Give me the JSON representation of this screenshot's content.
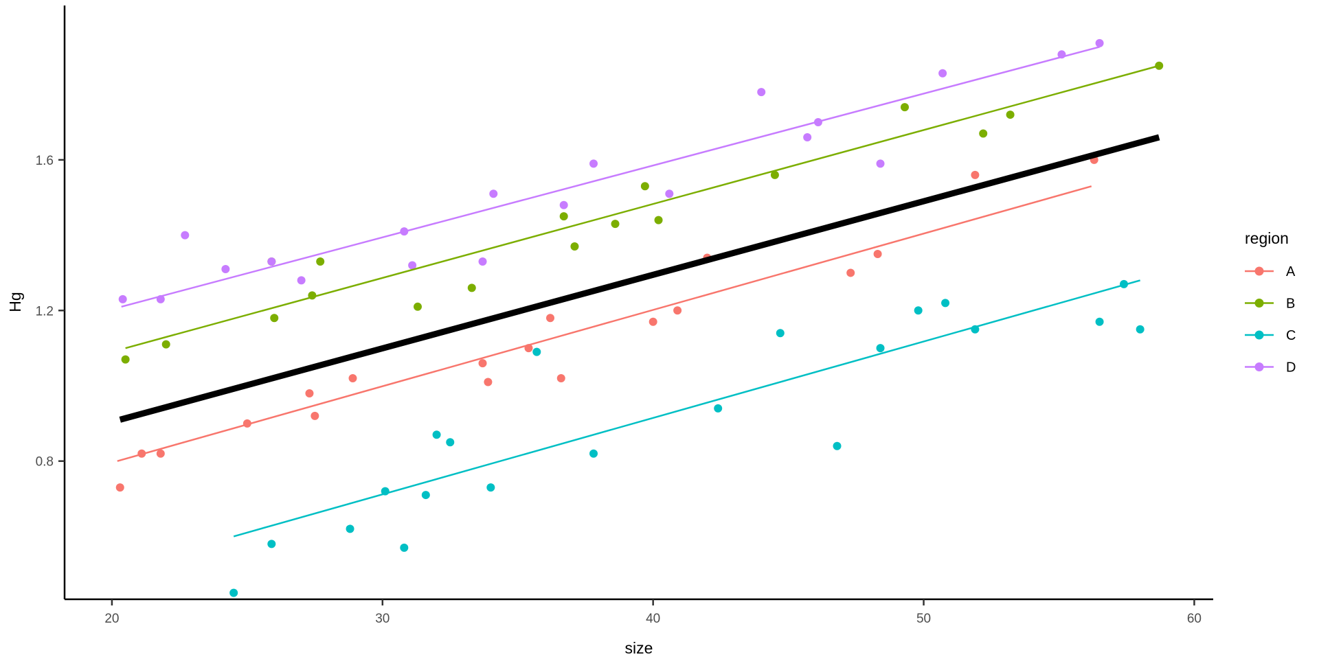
{
  "chart_data": {
    "type": "scatter",
    "title": "",
    "xlabel": "size",
    "ylabel": "Hg",
    "x_ticks": [
      "20",
      "30",
      "40",
      "50",
      "60"
    ],
    "y_ticks": [
      "0.8",
      "1.2",
      "1.6"
    ],
    "x_range": [
      18.25,
      60.7
    ],
    "y_range": [
      0.433,
      2.01
    ],
    "grid": "off",
    "legend": {
      "title": "region",
      "position": "right"
    },
    "series": [
      {
        "name": "A",
        "color": "#F8766D",
        "points": [
          [
            20.3,
            0.73
          ],
          [
            21.1,
            0.82
          ],
          [
            21.8,
            0.82
          ],
          [
            25.0,
            0.9
          ],
          [
            27.3,
            0.98
          ],
          [
            27.5,
            0.92
          ],
          [
            28.9,
            1.02
          ],
          [
            33.7,
            1.06
          ],
          [
            33.9,
            1.01
          ],
          [
            35.4,
            1.1
          ],
          [
            36.2,
            1.18
          ],
          [
            36.6,
            1.02
          ],
          [
            40.0,
            1.17
          ],
          [
            40.9,
            1.2
          ],
          [
            42.0,
            1.34
          ],
          [
            47.3,
            1.3
          ],
          [
            48.3,
            1.35
          ],
          [
            51.9,
            1.56
          ],
          [
            56.3,
            1.6
          ]
        ],
        "fit_line": {
          "x1": 20.2,
          "y1": 0.8,
          "x2": 56.2,
          "y2": 1.53
        }
      },
      {
        "name": "B",
        "color": "#7CAE00",
        "points": [
          [
            20.5,
            1.07
          ],
          [
            22.0,
            1.11
          ],
          [
            25.9,
            1.33
          ],
          [
            26.0,
            1.18
          ],
          [
            27.4,
            1.24
          ],
          [
            27.7,
            1.33
          ],
          [
            31.3,
            1.21
          ],
          [
            33.3,
            1.26
          ],
          [
            36.7,
            1.45
          ],
          [
            37.1,
            1.37
          ],
          [
            38.6,
            1.43
          ],
          [
            39.7,
            1.53
          ],
          [
            40.2,
            1.44
          ],
          [
            44.5,
            1.56
          ],
          [
            49.3,
            1.74
          ],
          [
            52.2,
            1.67
          ],
          [
            53.2,
            1.72
          ],
          [
            58.7,
            1.85
          ]
        ],
        "fit_line": {
          "x1": 20.5,
          "y1": 1.1,
          "x2": 58.7,
          "y2": 1.85
        }
      },
      {
        "name": "C",
        "color": "#00BFC4",
        "points": [
          [
            24.5,
            0.45
          ],
          [
            25.9,
            0.58
          ],
          [
            28.8,
            0.62
          ],
          [
            30.1,
            0.72
          ],
          [
            30.8,
            0.57
          ],
          [
            31.6,
            0.71
          ],
          [
            32.0,
            0.87
          ],
          [
            32.5,
            0.85
          ],
          [
            34.0,
            0.73
          ],
          [
            35.7,
            1.09
          ],
          [
            37.8,
            0.82
          ],
          [
            42.4,
            0.94
          ],
          [
            44.7,
            1.14
          ],
          [
            46.8,
            0.84
          ],
          [
            48.4,
            1.1
          ],
          [
            49.8,
            1.2
          ],
          [
            50.8,
            1.22
          ],
          [
            51.9,
            1.15
          ],
          [
            56.5,
            1.17
          ],
          [
            57.4,
            1.27
          ],
          [
            58.0,
            1.15
          ]
        ],
        "fit_line": {
          "x1": 24.5,
          "y1": 0.6,
          "x2": 58.0,
          "y2": 1.28
        }
      },
      {
        "name": "D",
        "color": "#C77CFF",
        "points": [
          [
            20.4,
            1.23
          ],
          [
            21.8,
            1.23
          ],
          [
            22.7,
            1.4
          ],
          [
            24.2,
            1.31
          ],
          [
            25.9,
            1.33
          ],
          [
            27.0,
            1.28
          ],
          [
            30.8,
            1.41
          ],
          [
            31.1,
            1.32
          ],
          [
            33.7,
            1.33
          ],
          [
            34.1,
            1.51
          ],
          [
            36.7,
            1.48
          ],
          [
            37.8,
            1.59
          ],
          [
            40.6,
            1.51
          ],
          [
            44.0,
            1.78
          ],
          [
            45.7,
            1.66
          ],
          [
            46.1,
            1.7
          ],
          [
            48.4,
            1.59
          ],
          [
            50.7,
            1.83
          ],
          [
            55.1,
            1.88
          ],
          [
            56.5,
            1.91
          ]
        ],
        "fit_line": {
          "x1": 20.35,
          "y1": 1.21,
          "x2": 56.5,
          "y2": 1.9
        }
      }
    ],
    "overall_line": {
      "name": "overall-fit",
      "color": "#000000",
      "x1": 20.3,
      "y1": 0.91,
      "x2": 58.7,
      "y2": 1.66
    }
  }
}
